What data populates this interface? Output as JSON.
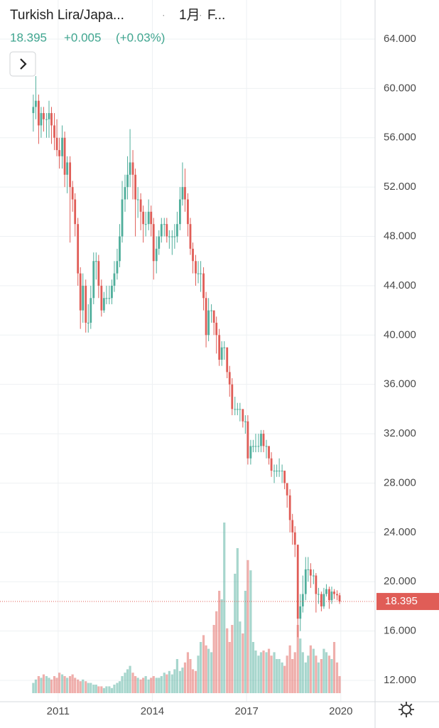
{
  "chart_data": {
    "type": "candlestick",
    "title": "Turkish Lira/Japa...",
    "interval": "1月",
    "exchange": "F...",
    "change": "+0.005",
    "change_percent": "(+0.03%)",
    "up_color": "#4fae9b",
    "down_color": "#e05d57",
    "grid": true,
    "x": [
      2010.21,
      2010.29,
      2010.38,
      2010.46,
      2010.54,
      2010.63,
      2010.71,
      2010.79,
      2010.88,
      2010.96,
      2011.04,
      2011.13,
      2011.21,
      2011.29,
      2011.38,
      2011.46,
      2011.54,
      2011.63,
      2011.71,
      2011.79,
      2011.88,
      2011.96,
      2012.04,
      2012.13,
      2012.21,
      2012.29,
      2012.38,
      2012.46,
      2012.54,
      2012.63,
      2012.71,
      2012.79,
      2012.88,
      2012.96,
      2013.04,
      2013.13,
      2013.21,
      2013.29,
      2013.38,
      2013.46,
      2013.54,
      2013.63,
      2013.71,
      2013.79,
      2013.88,
      2013.96,
      2014.04,
      2014.13,
      2014.21,
      2014.29,
      2014.38,
      2014.46,
      2014.54,
      2014.63,
      2014.71,
      2014.79,
      2014.88,
      2014.96,
      2015.04,
      2015.13,
      2015.21,
      2015.29,
      2015.38,
      2015.46,
      2015.54,
      2015.63,
      2015.71,
      2015.79,
      2015.88,
      2015.96,
      2016.04,
      2016.13,
      2016.21,
      2016.29,
      2016.38,
      2016.46,
      2016.54,
      2016.63,
      2016.71,
      2016.79,
      2016.88,
      2016.96,
      2017.04,
      2017.13,
      2017.21,
      2017.29,
      2017.38,
      2017.46,
      2017.54,
      2017.63,
      2017.71,
      2017.79,
      2017.88,
      2017.96,
      2018.04,
      2018.13,
      2018.21,
      2018.29,
      2018.38,
      2018.46,
      2018.54,
      2018.63,
      2018.71,
      2018.79,
      2018.88,
      2018.96,
      2019.04,
      2019.13,
      2019.21,
      2019.29,
      2019.38,
      2019.46,
      2019.54,
      2019.63,
      2019.71,
      2019.79,
      2019.88,
      2019.96
    ],
    "open": [
      58,
      58.5,
      59,
      57,
      58,
      57.5,
      57.5,
      58,
      57,
      56,
      55,
      54.5,
      56,
      53,
      54,
      52,
      51,
      49,
      45,
      42,
      44,
      41,
      41,
      43,
      46,
      46,
      44,
      42,
      43,
      43,
      43,
      44,
      45,
      46,
      48,
      51,
      52,
      53,
      54,
      53,
      51,
      51,
      50,
      49,
      49,
      50,
      49,
      46,
      47,
      48,
      49,
      49,
      48,
      48,
      48,
      48,
      49,
      51,
      52,
      51,
      49,
      47,
      46,
      45,
      45,
      45,
      43,
      40,
      42,
      42,
      41,
      40,
      38,
      39,
      39,
      37,
      36,
      34,
      34,
      34,
      34,
      33,
      33,
      30,
      31,
      31,
      31,
      31,
      32,
      31,
      31,
      30,
      29,
      29,
      29,
      29,
      29,
      28,
      27,
      25,
      24,
      23,
      17,
      18,
      19,
      21,
      21,
      20.5,
      20.5,
      19,
      19,
      18,
      19,
      19.4,
      18.5,
      19.2,
      19,
      18.9
    ],
    "high": [
      59.5,
      61,
      59.5,
      58.5,
      58.5,
      58,
      59,
      58.5,
      58,
      57.5,
      56,
      57,
      56.5,
      54.5,
      54.5,
      52.5,
      51.5,
      49.5,
      45.5,
      45,
      44.5,
      42.5,
      44,
      46.7,
      46.7,
      46.5,
      44.5,
      43.5,
      44,
      44,
      44.5,
      46,
      47,
      49,
      52.5,
      53,
      54.5,
      56.7,
      55,
      53.5,
      52,
      51.5,
      50.5,
      50,
      51,
      50.5,
      49.5,
      48,
      48.5,
      49.5,
      49.5,
      49.5,
      48.5,
      48.5,
      49,
      50,
      52,
      54,
      53.5,
      51.5,
      49.5,
      47.5,
      46.5,
      46,
      46,
      45.5,
      43.5,
      43,
      42.5,
      42,
      41.5,
      40.5,
      39.5,
      39.5,
      39,
      37.5,
      36.5,
      35,
      34.5,
      34.5,
      34,
      33.5,
      33.5,
      31.5,
      31.5,
      32,
      32,
      32.3,
      32.3,
      31.5,
      31,
      30.5,
      29.5,
      29.5,
      30,
      29.5,
      29,
      28,
      27.5,
      25.5,
      24.5,
      23,
      19,
      20.5,
      22,
      22,
      21.5,
      21,
      20.7,
      19.5,
      19.2,
      19.5,
      19.8,
      19.6,
      19.6,
      19.4,
      19.3,
      19.1
    ],
    "low": [
      56.5,
      57.5,
      55.5,
      56,
      56.5,
      56,
      56,
      55.5,
      55,
      54.5,
      53.5,
      53.5,
      52,
      51.5,
      47.5,
      50,
      48,
      44,
      40.5,
      41,
      40.2,
      40.2,
      40.5,
      42.5,
      44.5,
      43,
      41.5,
      41.8,
      42.5,
      42.5,
      42.5,
      43.5,
      44.5,
      45.5,
      47.5,
      50,
      51,
      52,
      51,
      48,
      49.5,
      48.5,
      47.5,
      48,
      48.5,
      48,
      44.5,
      45,
      46.5,
      47.5,
      48,
      47.5,
      47,
      46.5,
      47,
      47.5,
      48.5,
      50.5,
      50,
      48,
      46.5,
      45,
      44,
      44.2,
      43.5,
      42,
      39,
      39.5,
      41,
      40,
      38.5,
      37.5,
      37.5,
      38,
      36.5,
      35,
      33.5,
      33.5,
      33.5,
      33,
      32.5,
      32,
      29.5,
      29.5,
      30.5,
      30.5,
      30.5,
      30.5,
      30.5,
      30,
      29.5,
      28.5,
      28,
      28.5,
      28.5,
      28,
      27.5,
      26,
      24,
      23,
      22,
      15.5,
      16,
      17.5,
      18.5,
      20,
      19.5,
      19.8,
      17.5,
      18.2,
      17.6,
      17.8,
      18.8,
      17.8,
      18.2,
      18.6,
      18.5,
      18.2
    ],
    "close": [
      58.5,
      59,
      57,
      58,
      57.5,
      57.5,
      58,
      57,
      56,
      55,
      54.5,
      56,
      53,
      54,
      52,
      51,
      49,
      45,
      42,
      44,
      41,
      41,
      43,
      46,
      46,
      44,
      42,
      43,
      43,
      43,
      44,
      45,
      46,
      48,
      51,
      52,
      53,
      54,
      53,
      51,
      51,
      50,
      49,
      49,
      50,
      49,
      46,
      47,
      48,
      49,
      49,
      48,
      48,
      48,
      48,
      49,
      51,
      52,
      51,
      49,
      47,
      46,
      45,
      45,
      45,
      43,
      40,
      42,
      42,
      41,
      40,
      38,
      39,
      39,
      37,
      36,
      34,
      34,
      34,
      34,
      33,
      33,
      30,
      31,
      31,
      31,
      31,
      32,
      31,
      31,
      30,
      29,
      29,
      29,
      29,
      29,
      28,
      27,
      25,
      24,
      23,
      17,
      18,
      19,
      21,
      21,
      20.5,
      20.5,
      19,
      19,
      18,
      19,
      19.4,
      18.5,
      19.2,
      19,
      18.9,
      18.395
    ],
    "volume": [
      6,
      8,
      10,
      9,
      11,
      10,
      9,
      8,
      10,
      9,
      12,
      11,
      10,
      9,
      10,
      11,
      9,
      8,
      7,
      8,
      7,
      6,
      6,
      5,
      5,
      4,
      4,
      3,
      4,
      4,
      3,
      5,
      6,
      7,
      10,
      12,
      14,
      16,
      12,
      10,
      9,
      8,
      9,
      10,
      8,
      9,
      10,
      9,
      9,
      10,
      12,
      11,
      13,
      11,
      14,
      20,
      13,
      15,
      18,
      24,
      20,
      14,
      13,
      22,
      30,
      34,
      28,
      26,
      24,
      40,
      48,
      60,
      55,
      100,
      38,
      30,
      40,
      70,
      85,
      42,
      35,
      60,
      78,
      72,
      30,
      25,
      22,
      24,
      25,
      24,
      26,
      22,
      24,
      20,
      20,
      18,
      16,
      22,
      28,
      20,
      24,
      40,
      32,
      24,
      18,
      22,
      28,
      26,
      22,
      18,
      20,
      26,
      24,
      22,
      20,
      30,
      18,
      10
    ],
    "xlim": [
      2009.15,
      2021.09
    ],
    "xticks": [
      2011,
      2014,
      2017,
      2020
    ],
    "ylim": [
      10.27,
      67.17
    ],
    "yticks": [
      {
        "value": 64,
        "label": "64.000"
      },
      {
        "value": 60,
        "label": "60.000"
      },
      {
        "value": 56,
        "label": "56.000"
      },
      {
        "value": 52,
        "label": "52.000"
      },
      {
        "value": 48,
        "label": "48.000"
      },
      {
        "value": 44,
        "label": "44.000"
      },
      {
        "value": 40,
        "label": "40.000"
      },
      {
        "value": 36,
        "label": "36.000"
      },
      {
        "value": 32,
        "label": "32.000"
      },
      {
        "value": 28,
        "label": "28.000"
      },
      {
        "value": 24,
        "label": "24.000"
      },
      {
        "value": 20,
        "label": "20.000"
      },
      {
        "value": 16,
        "label": "16.000"
      },
      {
        "value": 12,
        "label": "12.000"
      }
    ]
  }
}
